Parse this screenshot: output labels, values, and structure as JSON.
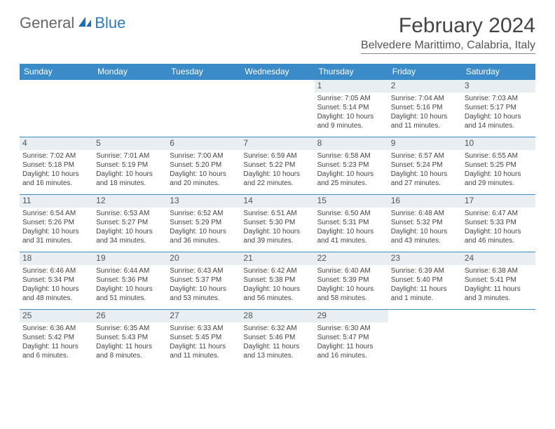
{
  "logo": {
    "text1": "General",
    "text2": "Blue"
  },
  "title": "February 2024",
  "location": "Belvedere Marittimo, Calabria, Italy",
  "header_bg": "#3b8bc9",
  "day_names": [
    "Sunday",
    "Monday",
    "Tuesday",
    "Wednesday",
    "Thursday",
    "Friday",
    "Saturday"
  ],
  "weeks": [
    [
      null,
      null,
      null,
      null,
      {
        "n": "1",
        "sr": "Sunrise: 7:05 AM",
        "ss": "Sunset: 5:14 PM",
        "d1": "Daylight: 10 hours",
        "d2": "and 9 minutes."
      },
      {
        "n": "2",
        "sr": "Sunrise: 7:04 AM",
        "ss": "Sunset: 5:16 PM",
        "d1": "Daylight: 10 hours",
        "d2": "and 11 minutes."
      },
      {
        "n": "3",
        "sr": "Sunrise: 7:03 AM",
        "ss": "Sunset: 5:17 PM",
        "d1": "Daylight: 10 hours",
        "d2": "and 14 minutes."
      }
    ],
    [
      {
        "n": "4",
        "sr": "Sunrise: 7:02 AM",
        "ss": "Sunset: 5:18 PM",
        "d1": "Daylight: 10 hours",
        "d2": "and 16 minutes."
      },
      {
        "n": "5",
        "sr": "Sunrise: 7:01 AM",
        "ss": "Sunset: 5:19 PM",
        "d1": "Daylight: 10 hours",
        "d2": "and 18 minutes."
      },
      {
        "n": "6",
        "sr": "Sunrise: 7:00 AM",
        "ss": "Sunset: 5:20 PM",
        "d1": "Daylight: 10 hours",
        "d2": "and 20 minutes."
      },
      {
        "n": "7",
        "sr": "Sunrise: 6:59 AM",
        "ss": "Sunset: 5:22 PM",
        "d1": "Daylight: 10 hours",
        "d2": "and 22 minutes."
      },
      {
        "n": "8",
        "sr": "Sunrise: 6:58 AM",
        "ss": "Sunset: 5:23 PM",
        "d1": "Daylight: 10 hours",
        "d2": "and 25 minutes."
      },
      {
        "n": "9",
        "sr": "Sunrise: 6:57 AM",
        "ss": "Sunset: 5:24 PM",
        "d1": "Daylight: 10 hours",
        "d2": "and 27 minutes."
      },
      {
        "n": "10",
        "sr": "Sunrise: 6:55 AM",
        "ss": "Sunset: 5:25 PM",
        "d1": "Daylight: 10 hours",
        "d2": "and 29 minutes."
      }
    ],
    [
      {
        "n": "11",
        "sr": "Sunrise: 6:54 AM",
        "ss": "Sunset: 5:26 PM",
        "d1": "Daylight: 10 hours",
        "d2": "and 31 minutes."
      },
      {
        "n": "12",
        "sr": "Sunrise: 6:53 AM",
        "ss": "Sunset: 5:27 PM",
        "d1": "Daylight: 10 hours",
        "d2": "and 34 minutes."
      },
      {
        "n": "13",
        "sr": "Sunrise: 6:52 AM",
        "ss": "Sunset: 5:29 PM",
        "d1": "Daylight: 10 hours",
        "d2": "and 36 minutes."
      },
      {
        "n": "14",
        "sr": "Sunrise: 6:51 AM",
        "ss": "Sunset: 5:30 PM",
        "d1": "Daylight: 10 hours",
        "d2": "and 39 minutes."
      },
      {
        "n": "15",
        "sr": "Sunrise: 6:50 AM",
        "ss": "Sunset: 5:31 PM",
        "d1": "Daylight: 10 hours",
        "d2": "and 41 minutes."
      },
      {
        "n": "16",
        "sr": "Sunrise: 6:48 AM",
        "ss": "Sunset: 5:32 PM",
        "d1": "Daylight: 10 hours",
        "d2": "and 43 minutes."
      },
      {
        "n": "17",
        "sr": "Sunrise: 6:47 AM",
        "ss": "Sunset: 5:33 PM",
        "d1": "Daylight: 10 hours",
        "d2": "and 46 minutes."
      }
    ],
    [
      {
        "n": "18",
        "sr": "Sunrise: 6:46 AM",
        "ss": "Sunset: 5:34 PM",
        "d1": "Daylight: 10 hours",
        "d2": "and 48 minutes."
      },
      {
        "n": "19",
        "sr": "Sunrise: 6:44 AM",
        "ss": "Sunset: 5:36 PM",
        "d1": "Daylight: 10 hours",
        "d2": "and 51 minutes."
      },
      {
        "n": "20",
        "sr": "Sunrise: 6:43 AM",
        "ss": "Sunset: 5:37 PM",
        "d1": "Daylight: 10 hours",
        "d2": "and 53 minutes."
      },
      {
        "n": "21",
        "sr": "Sunrise: 6:42 AM",
        "ss": "Sunset: 5:38 PM",
        "d1": "Daylight: 10 hours",
        "d2": "and 56 minutes."
      },
      {
        "n": "22",
        "sr": "Sunrise: 6:40 AM",
        "ss": "Sunset: 5:39 PM",
        "d1": "Daylight: 10 hours",
        "d2": "and 58 minutes."
      },
      {
        "n": "23",
        "sr": "Sunrise: 6:39 AM",
        "ss": "Sunset: 5:40 PM",
        "d1": "Daylight: 11 hours",
        "d2": "and 1 minute."
      },
      {
        "n": "24",
        "sr": "Sunrise: 6:38 AM",
        "ss": "Sunset: 5:41 PM",
        "d1": "Daylight: 11 hours",
        "d2": "and 3 minutes."
      }
    ],
    [
      {
        "n": "25",
        "sr": "Sunrise: 6:36 AM",
        "ss": "Sunset: 5:42 PM",
        "d1": "Daylight: 11 hours",
        "d2": "and 6 minutes."
      },
      {
        "n": "26",
        "sr": "Sunrise: 6:35 AM",
        "ss": "Sunset: 5:43 PM",
        "d1": "Daylight: 11 hours",
        "d2": "and 8 minutes."
      },
      {
        "n": "27",
        "sr": "Sunrise: 6:33 AM",
        "ss": "Sunset: 5:45 PM",
        "d1": "Daylight: 11 hours",
        "d2": "and 11 minutes."
      },
      {
        "n": "28",
        "sr": "Sunrise: 6:32 AM",
        "ss": "Sunset: 5:46 PM",
        "d1": "Daylight: 11 hours",
        "d2": "and 13 minutes."
      },
      {
        "n": "29",
        "sr": "Sunrise: 6:30 AM",
        "ss": "Sunset: 5:47 PM",
        "d1": "Daylight: 11 hours",
        "d2": "and 16 minutes."
      },
      null,
      null
    ]
  ]
}
